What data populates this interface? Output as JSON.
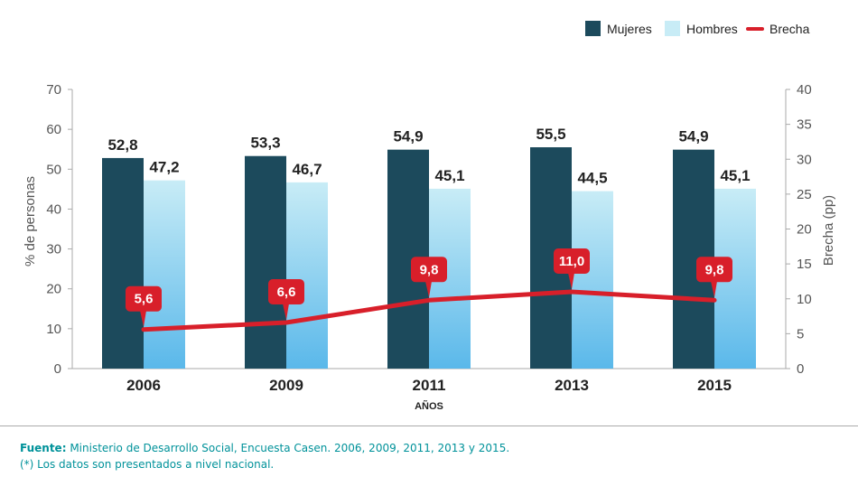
{
  "chart_data": {
    "type": "bar",
    "title": "",
    "categories": [
      "2006",
      "2009",
      "2011",
      "2013",
      "2015"
    ],
    "series": [
      {
        "name": "Mujeres",
        "kind": "bar",
        "axis": "left",
        "color": "#1c4a5c",
        "values": [
          52.8,
          53.3,
          54.9,
          55.5,
          54.9
        ],
        "labels": [
          "52,8",
          "53,3",
          "54,9",
          "55,5",
          "54,9"
        ]
      },
      {
        "name": "Hombres",
        "kind": "bar",
        "axis": "left",
        "color_top": "#c8ecf6",
        "color_bottom": "#5ab8ea",
        "values": [
          47.2,
          46.7,
          45.1,
          44.5,
          45.1
        ],
        "labels": [
          "47,2",
          "46,7",
          "45,1",
          "44,5",
          "45,1"
        ]
      },
      {
        "name": "Brecha",
        "kind": "line",
        "axis": "right",
        "color": "#d81f2a",
        "values": [
          5.6,
          6.6,
          9.8,
          11.0,
          9.8
        ],
        "labels": [
          "5,6",
          "6,6",
          "9,8",
          "11,0",
          "9,8"
        ]
      }
    ],
    "xlabel": "AÑOS",
    "ylabel": "% de personas",
    "ylim": [
      0,
      70
    ],
    "yticks": [
      0,
      10,
      20,
      30,
      40,
      50,
      60,
      70
    ],
    "y2label": "Brecha  (pp)",
    "y2lim": [
      0,
      40
    ],
    "y2ticks": [
      0,
      5,
      10,
      15,
      20,
      25,
      30,
      35,
      40
    ],
    "grid": false,
    "legend": {
      "position": "top-right",
      "entries": [
        "Mujeres",
        "Hombres",
        "Brecha"
      ]
    }
  },
  "footer": {
    "source_label": "Fuente:",
    "source_text": " Ministerio de Desarrollo Social, Encuesta Casen. 2006, 2009, 2011, 2013 y 2015.",
    "note": "(*) Los datos son presentados a nivel nacional."
  }
}
